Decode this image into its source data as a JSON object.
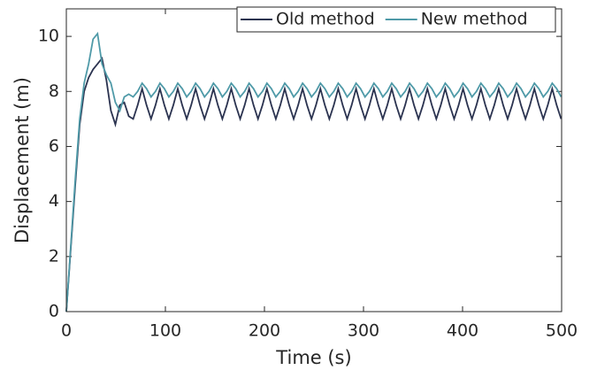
{
  "chart_data": {
    "type": "line",
    "x_label": "Time (s)",
    "y_label": "Displacement (m)",
    "x": [
      0,
      4.5,
      9,
      13.5,
      18,
      22.5,
      27,
      31.5,
      36,
      40.5,
      45,
      49.5,
      54,
      58.5,
      63,
      67.5,
      72,
      76.5,
      81,
      85.5,
      90,
      94.5,
      99,
      103.5,
      108,
      112.5,
      117,
      121.5,
      126,
      130.5,
      135,
      139.5,
      144,
      148.5,
      153,
      157.5,
      162,
      166.5,
      171,
      175.5,
      180,
      184.5,
      189,
      193.5,
      198,
      202.5,
      207,
      211.5,
      216,
      220.5,
      225,
      229.5,
      234,
      238.5,
      243,
      247.5,
      252,
      256.5,
      261,
      265.5,
      270,
      274.5,
      279,
      283.5,
      288,
      292.5,
      297,
      301.5,
      306,
      310.5,
      315,
      319.5,
      324,
      328.5,
      333,
      337.5,
      342,
      346.5,
      351,
      355.5,
      360,
      364.5,
      369,
      373.5,
      378,
      382.5,
      387,
      391.5,
      396,
      400.5,
      405,
      409.5,
      414,
      418.5,
      423,
      427.5,
      432,
      436.5,
      441,
      445.5,
      450,
      454.5,
      459,
      463.5,
      468,
      472.5,
      477,
      481.5,
      486,
      490.5,
      495,
      499.5
    ],
    "series": [
      {
        "name": "Old method",
        "color": "#2b3350",
        "values": [
          0,
          2.3,
          4.6,
          6.8,
          8.0,
          8.5,
          8.8,
          9.0,
          9.2,
          8.4,
          7.3,
          6.8,
          7.5,
          7.6,
          7.1,
          7.0,
          7.5,
          8.1,
          7.5,
          7.0,
          7.5,
          8.1,
          7.5,
          7.0,
          7.5,
          8.1,
          7.5,
          7.0,
          7.5,
          8.1,
          7.5,
          7.0,
          7.5,
          8.1,
          7.5,
          7.0,
          7.5,
          8.1,
          7.5,
          7.0,
          7.5,
          8.1,
          7.5,
          7.0,
          7.5,
          8.1,
          7.5,
          7.0,
          7.5,
          8.1,
          7.5,
          7.0,
          7.5,
          8.1,
          7.5,
          7.0,
          7.5,
          8.1,
          7.5,
          7.0,
          7.5,
          8.1,
          7.5,
          7.0,
          7.5,
          8.1,
          7.5,
          7.0,
          7.5,
          8.1,
          7.5,
          7.0,
          7.5,
          8.1,
          7.5,
          7.0,
          7.5,
          8.1,
          7.5,
          7.0,
          7.5,
          8.1,
          7.5,
          7.0,
          7.5,
          8.1,
          7.5,
          7.0,
          7.5,
          8.1,
          7.5,
          7.0,
          7.5,
          8.1,
          7.5,
          7.0,
          7.5,
          8.1,
          7.5,
          7.0,
          7.5,
          8.1,
          7.5,
          7.0,
          7.5,
          8.1,
          7.5,
          7.0,
          7.5,
          8.1,
          7.5,
          7.0
        ]
      },
      {
        "name": "New method",
        "color": "#4f9aa8",
        "values": [
          0,
          2.4,
          4.8,
          7.0,
          8.3,
          9.0,
          9.9,
          10.1,
          9.0,
          8.6,
          8.3,
          7.6,
          7.3,
          7.8,
          7.9,
          7.8,
          8.0,
          8.3,
          8.1,
          7.8,
          8.0,
          8.3,
          8.1,
          7.8,
          8.0,
          8.3,
          8.1,
          7.8,
          8.0,
          8.3,
          8.1,
          7.8,
          8.0,
          8.3,
          8.1,
          7.8,
          8.0,
          8.3,
          8.1,
          7.8,
          8.0,
          8.3,
          8.1,
          7.8,
          8.0,
          8.3,
          8.1,
          7.8,
          8.0,
          8.3,
          8.1,
          7.8,
          8.0,
          8.3,
          8.1,
          7.8,
          8.0,
          8.3,
          8.1,
          7.8,
          8.0,
          8.3,
          8.1,
          7.8,
          8.0,
          8.3,
          8.1,
          7.8,
          8.0,
          8.3,
          8.1,
          7.8,
          8.0,
          8.3,
          8.1,
          7.8,
          8.0,
          8.3,
          8.1,
          7.8,
          8.0,
          8.3,
          8.1,
          7.8,
          8.0,
          8.3,
          8.1,
          7.8,
          8.0,
          8.3,
          8.1,
          7.8,
          8.0,
          8.3,
          8.1,
          7.8,
          8.0,
          8.3,
          8.1,
          7.8,
          8.0,
          8.3,
          8.1,
          7.8,
          8.0,
          8.3,
          8.1,
          7.8,
          8.0,
          8.3,
          8.1,
          7.8
        ]
      }
    ],
    "xlim": [
      0,
      500
    ],
    "xticks": [
      0,
      100,
      200,
      300,
      400,
      500
    ],
    "ylim": [
      0,
      11
    ],
    "yticks": [
      0,
      2,
      4,
      6,
      8,
      10
    ],
    "grid": false,
    "legend": "top-right"
  }
}
